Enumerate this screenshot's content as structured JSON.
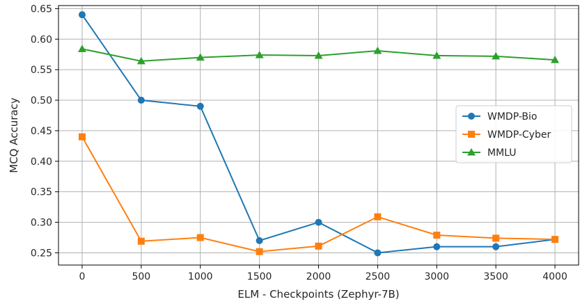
{
  "chart_data": {
    "type": "line",
    "title": "",
    "xlabel": "ELM - Checkpoints (Zephyr-7B)",
    "ylabel": "MCQ Accuracy",
    "x": [
      0,
      500,
      1000,
      1500,
      2000,
      2500,
      3000,
      3500,
      4000
    ],
    "x_ticks": [
      "0",
      "500",
      "1000",
      "1500",
      "2000",
      "2500",
      "3000",
      "3500",
      "4000"
    ],
    "y_ticks": [
      "0.25",
      "0.30",
      "0.35",
      "0.40",
      "0.45",
      "0.50",
      "0.55",
      "0.60",
      "0.65"
    ],
    "xlim": [
      -200,
      4200
    ],
    "ylim": [
      0.23,
      0.655
    ],
    "grid": true,
    "legend_position": "center-right",
    "series": [
      {
        "name": "WMDP-Bio",
        "color": "#1f77b4",
        "marker": "circle",
        "values": [
          0.64,
          0.5,
          0.49,
          0.27,
          0.3,
          0.25,
          0.26,
          0.26,
          0.272
        ]
      },
      {
        "name": "WMDP-Cyber",
        "color": "#ff7f0e",
        "marker": "square",
        "values": [
          0.44,
          0.269,
          0.275,
          0.252,
          0.261,
          0.309,
          0.279,
          0.274,
          0.272
        ]
      },
      {
        "name": "MMLU",
        "color": "#2ca02c",
        "marker": "triangle",
        "values": [
          0.584,
          0.564,
          0.57,
          0.574,
          0.573,
          0.581,
          0.573,
          0.572,
          0.566
        ]
      }
    ]
  }
}
